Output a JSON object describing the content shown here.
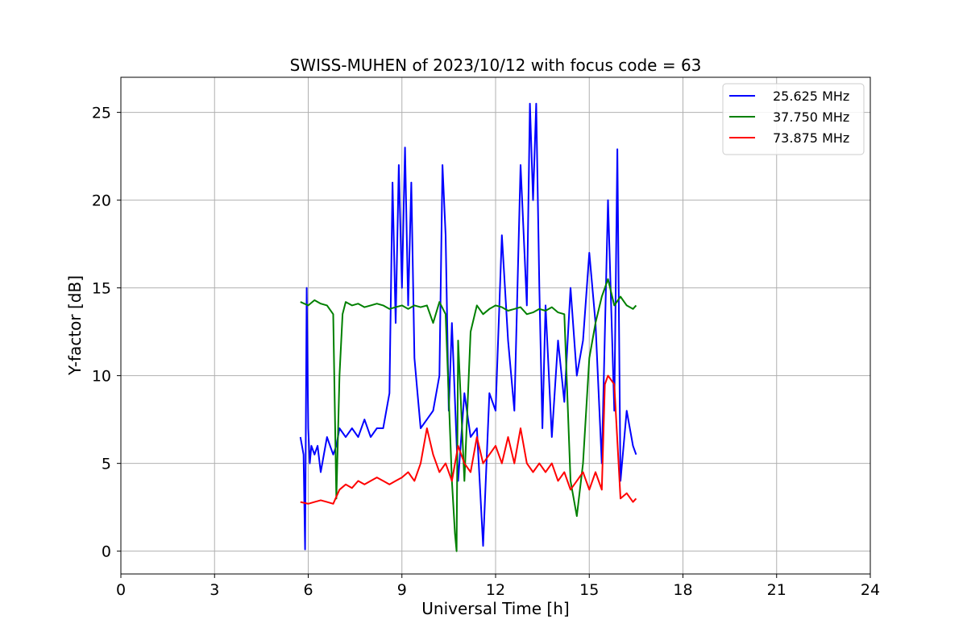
{
  "chart_data": {
    "type": "line",
    "title": "SWISS-MUHEN of 2023/10/12 with focus code = 63",
    "xlabel": "Universal Time [h]",
    "ylabel": "Y-factor [dB]",
    "xlim": [
      0,
      24
    ],
    "ylim": [
      -1.3,
      27
    ],
    "xticks": [
      0,
      3,
      6,
      9,
      12,
      15,
      18,
      21,
      24
    ],
    "yticks": [
      0,
      5,
      10,
      15,
      20,
      25
    ],
    "grid": true,
    "legend_position": "top-right",
    "series": [
      {
        "name": "25.625 MHz",
        "color": "#0000ff",
        "x": [
          5.75,
          5.85,
          5.9,
          5.95,
          6.0,
          6.05,
          6.1,
          6.2,
          6.3,
          6.4,
          6.5,
          6.6,
          6.7,
          6.8,
          6.9,
          7.0,
          7.2,
          7.4,
          7.6,
          7.8,
          8.0,
          8.2,
          8.4,
          8.6,
          8.7,
          8.8,
          8.9,
          9.0,
          9.1,
          9.2,
          9.3,
          9.4,
          9.5,
          9.6,
          9.8,
          10.0,
          10.2,
          10.3,
          10.4,
          10.5,
          10.6,
          10.8,
          11.0,
          11.2,
          11.4,
          11.6,
          11.8,
          12.0,
          12.2,
          12.4,
          12.6,
          12.8,
          13.0,
          13.1,
          13.2,
          13.3,
          13.4,
          13.5,
          13.6,
          13.8,
          14.0,
          14.2,
          14.4,
          14.6,
          14.8,
          15.0,
          15.2,
          15.4,
          15.6,
          15.8,
          15.9,
          16.0,
          16.2,
          16.4,
          16.5
        ],
        "y": [
          6.5,
          5.5,
          0.1,
          15.0,
          7.0,
          5.0,
          6.0,
          5.5,
          6.0,
          4.5,
          5.5,
          6.5,
          6.0,
          5.5,
          6.0,
          7.0,
          6.5,
          7.0,
          6.5,
          7.5,
          6.5,
          7.0,
          7.0,
          9.0,
          21.0,
          13.0,
          22.0,
          15.0,
          23.0,
          14.0,
          21.0,
          11.0,
          9.0,
          7.0,
          7.5,
          8.0,
          10.0,
          22.0,
          18.0,
          8.0,
          13.0,
          4.0,
          9.0,
          6.5,
          7.0,
          0.3,
          9.0,
          8.0,
          18.0,
          12.0,
          8.0,
          22.0,
          14.0,
          25.5,
          20.0,
          25.5,
          15.0,
          7.0,
          14.0,
          6.5,
          12.0,
          8.5,
          15.0,
          10.0,
          12.0,
          17.0,
          13.0,
          5.0,
          20.0,
          8.0,
          22.9,
          4.0,
          8.0,
          6.0,
          5.5
        ]
      },
      {
        "name": "37.750 MHz",
        "color": "#008000",
        "x": [
          5.75,
          6.0,
          6.2,
          6.4,
          6.6,
          6.8,
          6.9,
          7.0,
          7.1,
          7.2,
          7.4,
          7.6,
          7.8,
          8.0,
          8.2,
          8.4,
          8.6,
          8.8,
          9.0,
          9.2,
          9.4,
          9.6,
          9.8,
          10.0,
          10.2,
          10.4,
          10.6,
          10.7,
          10.75,
          10.8,
          11.0,
          11.2,
          11.4,
          11.6,
          11.8,
          12.0,
          12.2,
          12.4,
          12.6,
          12.8,
          13.0,
          13.2,
          13.4,
          13.6,
          13.8,
          14.0,
          14.2,
          14.4,
          14.6,
          14.8,
          15.0,
          15.2,
          15.4,
          15.6,
          15.8,
          16.0,
          16.2,
          16.4,
          16.5
        ],
        "y": [
          14.2,
          14.0,
          14.3,
          14.1,
          14.0,
          13.5,
          3.0,
          10.0,
          13.5,
          14.2,
          14.0,
          14.1,
          13.9,
          14.0,
          14.1,
          14.0,
          13.8,
          13.9,
          14.0,
          13.8,
          14.0,
          13.9,
          14.0,
          13.0,
          14.2,
          13.5,
          4.0,
          1.0,
          0.0,
          12.0,
          4.0,
          12.5,
          14.0,
          13.5,
          13.8,
          14.0,
          13.9,
          13.7,
          13.8,
          13.9,
          13.5,
          13.6,
          13.8,
          13.7,
          13.9,
          13.6,
          13.5,
          4.0,
          2.0,
          5.0,
          11.0,
          13.0,
          14.5,
          15.5,
          14.0,
          14.5,
          14.0,
          13.8,
          14.0
        ]
      },
      {
        "name": "73.875 MHz",
        "color": "#ff0000",
        "x": [
          5.75,
          6.0,
          6.2,
          6.4,
          6.6,
          6.8,
          7.0,
          7.2,
          7.4,
          7.6,
          7.8,
          8.0,
          8.2,
          8.4,
          8.6,
          8.8,
          9.0,
          9.2,
          9.4,
          9.6,
          9.8,
          10.0,
          10.2,
          10.4,
          10.6,
          10.8,
          11.0,
          11.2,
          11.4,
          11.6,
          11.8,
          12.0,
          12.2,
          12.4,
          12.6,
          12.8,
          13.0,
          13.2,
          13.4,
          13.6,
          13.8,
          14.0,
          14.2,
          14.4,
          14.6,
          14.8,
          15.0,
          15.2,
          15.4,
          15.5,
          15.6,
          15.8,
          16.0,
          16.2,
          16.4,
          16.5
        ],
        "y": [
          2.8,
          2.7,
          2.8,
          2.9,
          2.8,
          2.7,
          3.5,
          3.8,
          3.6,
          4.0,
          3.8,
          4.0,
          4.2,
          4.0,
          3.8,
          4.0,
          4.2,
          4.5,
          4.0,
          5.0,
          7.0,
          5.5,
          4.5,
          5.0,
          4.0,
          6.0,
          5.0,
          4.5,
          6.5,
          5.0,
          5.5,
          6.0,
          5.0,
          6.5,
          5.0,
          7.0,
          5.0,
          4.5,
          5.0,
          4.5,
          5.0,
          4.0,
          4.5,
          3.5,
          4.0,
          4.5,
          3.5,
          4.5,
          3.5,
          9.5,
          10.0,
          9.5,
          3.0,
          3.3,
          2.8,
          3.0
        ]
      }
    ]
  }
}
